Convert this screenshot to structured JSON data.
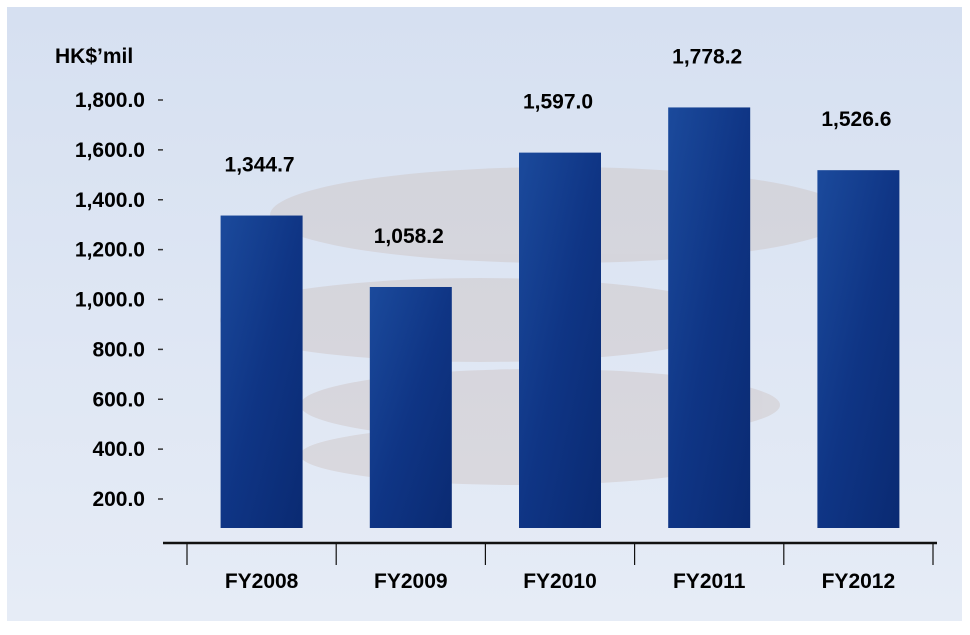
{
  "chart_data": {
    "type": "bar",
    "unit_label": "HK$’mil",
    "categories": [
      "FY2008",
      "FY2009",
      "FY2010",
      "FY2011",
      "FY2012"
    ],
    "values": [
      1344.7,
      1058.2,
      1597.0,
      1778.2,
      1526.6
    ],
    "value_labels": [
      "1,344.7",
      "1,058.2",
      "1,597.0",
      "1,778.2",
      "1,526.6"
    ],
    "yticks": [
      200,
      400,
      600,
      800,
      1000,
      1200,
      1400,
      1600,
      1800
    ],
    "ytick_labels": [
      "200.0",
      "400.0",
      "600.0",
      "800.0",
      "1,000.0",
      "1,200.0",
      "1,400.0",
      "1,600.0",
      "1,800.0"
    ],
    "ylim": [
      0,
      1800
    ],
    "grid": false,
    "legend": "none"
  },
  "colors": {
    "panel_background": "#dde6f4",
    "bar_dark": "#0d2f7e",
    "bar_light": "#3f72c2",
    "axis": "#111111",
    "text": "#000000"
  }
}
